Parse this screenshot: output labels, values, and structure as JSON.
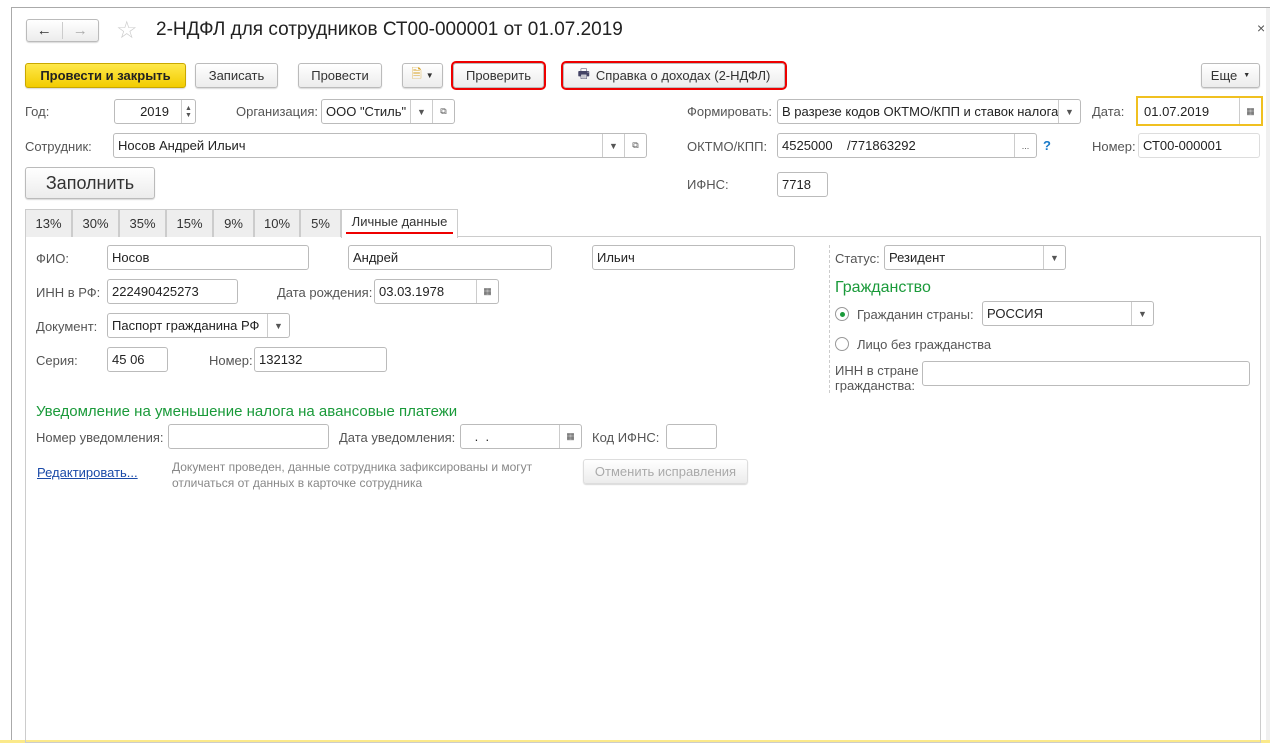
{
  "title": "2-НДФЛ для сотрудников СТ00-000001 от 01.07.2019",
  "toolbar": {
    "post_close": "Провести и закрыть",
    "save": "Записать",
    "post": "Провести",
    "check": "Проверить",
    "certificate": "Справка о доходах (2-НДФЛ)",
    "more": "Еще"
  },
  "header": {
    "year_label": "Год:",
    "year": "2019",
    "org_label": "Организация:",
    "org": "ООО \"Стиль\"",
    "employee_label": "Сотрудник:",
    "employee": "Носов Андрей Ильич",
    "fill": "Заполнить",
    "form_label": "Формировать:",
    "form": "В разрезе кодов ОКТМО/КПП и ставок налога",
    "date_label": "Дата:",
    "date": "01.07.2019",
    "oktmo_label": "ОКТМО/КПП:",
    "oktmo": "4525000    /771863292",
    "help": "?",
    "number_label": "Номер:",
    "number": "СТ00-000001",
    "ifns_label": "ИФНС:",
    "ifns": "7718"
  },
  "tabs": [
    "13%",
    "30%",
    "35%",
    "15%",
    "9%",
    "10%",
    "5%",
    "Личные данные"
  ],
  "personal": {
    "fio_label": "ФИО:",
    "last": "Носов",
    "first": "Андрей",
    "middle": "Ильич",
    "inn_label": "ИНН в РФ:",
    "inn": "222490425273",
    "birth_label": "Дата рождения:",
    "birth": "03.03.1978",
    "doc_label": "Документ:",
    "doc": "Паспорт гражданина РФ",
    "series_label": "Серия:",
    "series": "45 06",
    "num_label": "Номер:",
    "num": "132132",
    "status_label": "Статус:",
    "status": "Резидент",
    "citizenship_title": "Гражданство",
    "citizen_label": "Гражданин страны:",
    "country": "РОССИЯ",
    "stateless_label": "Лицо без гражданства",
    "inn_foreign_label": "ИНН в стране гражданства:",
    "inn_foreign": ""
  },
  "notice": {
    "title": "Уведомление на уменьшение налога на авансовые платежи",
    "num_label": "Номер уведомления:",
    "num": "",
    "date_label": "Дата уведомления:",
    "date": " .  .",
    "ifns_label": "Код ИФНС:",
    "ifns": ""
  },
  "edit_link": "Редактировать...",
  "info": "Документ проведен, данные сотрудника зафиксированы и могут отличаться от данных в карточке сотрудника",
  "cancel_fix": "Отменить исправления"
}
